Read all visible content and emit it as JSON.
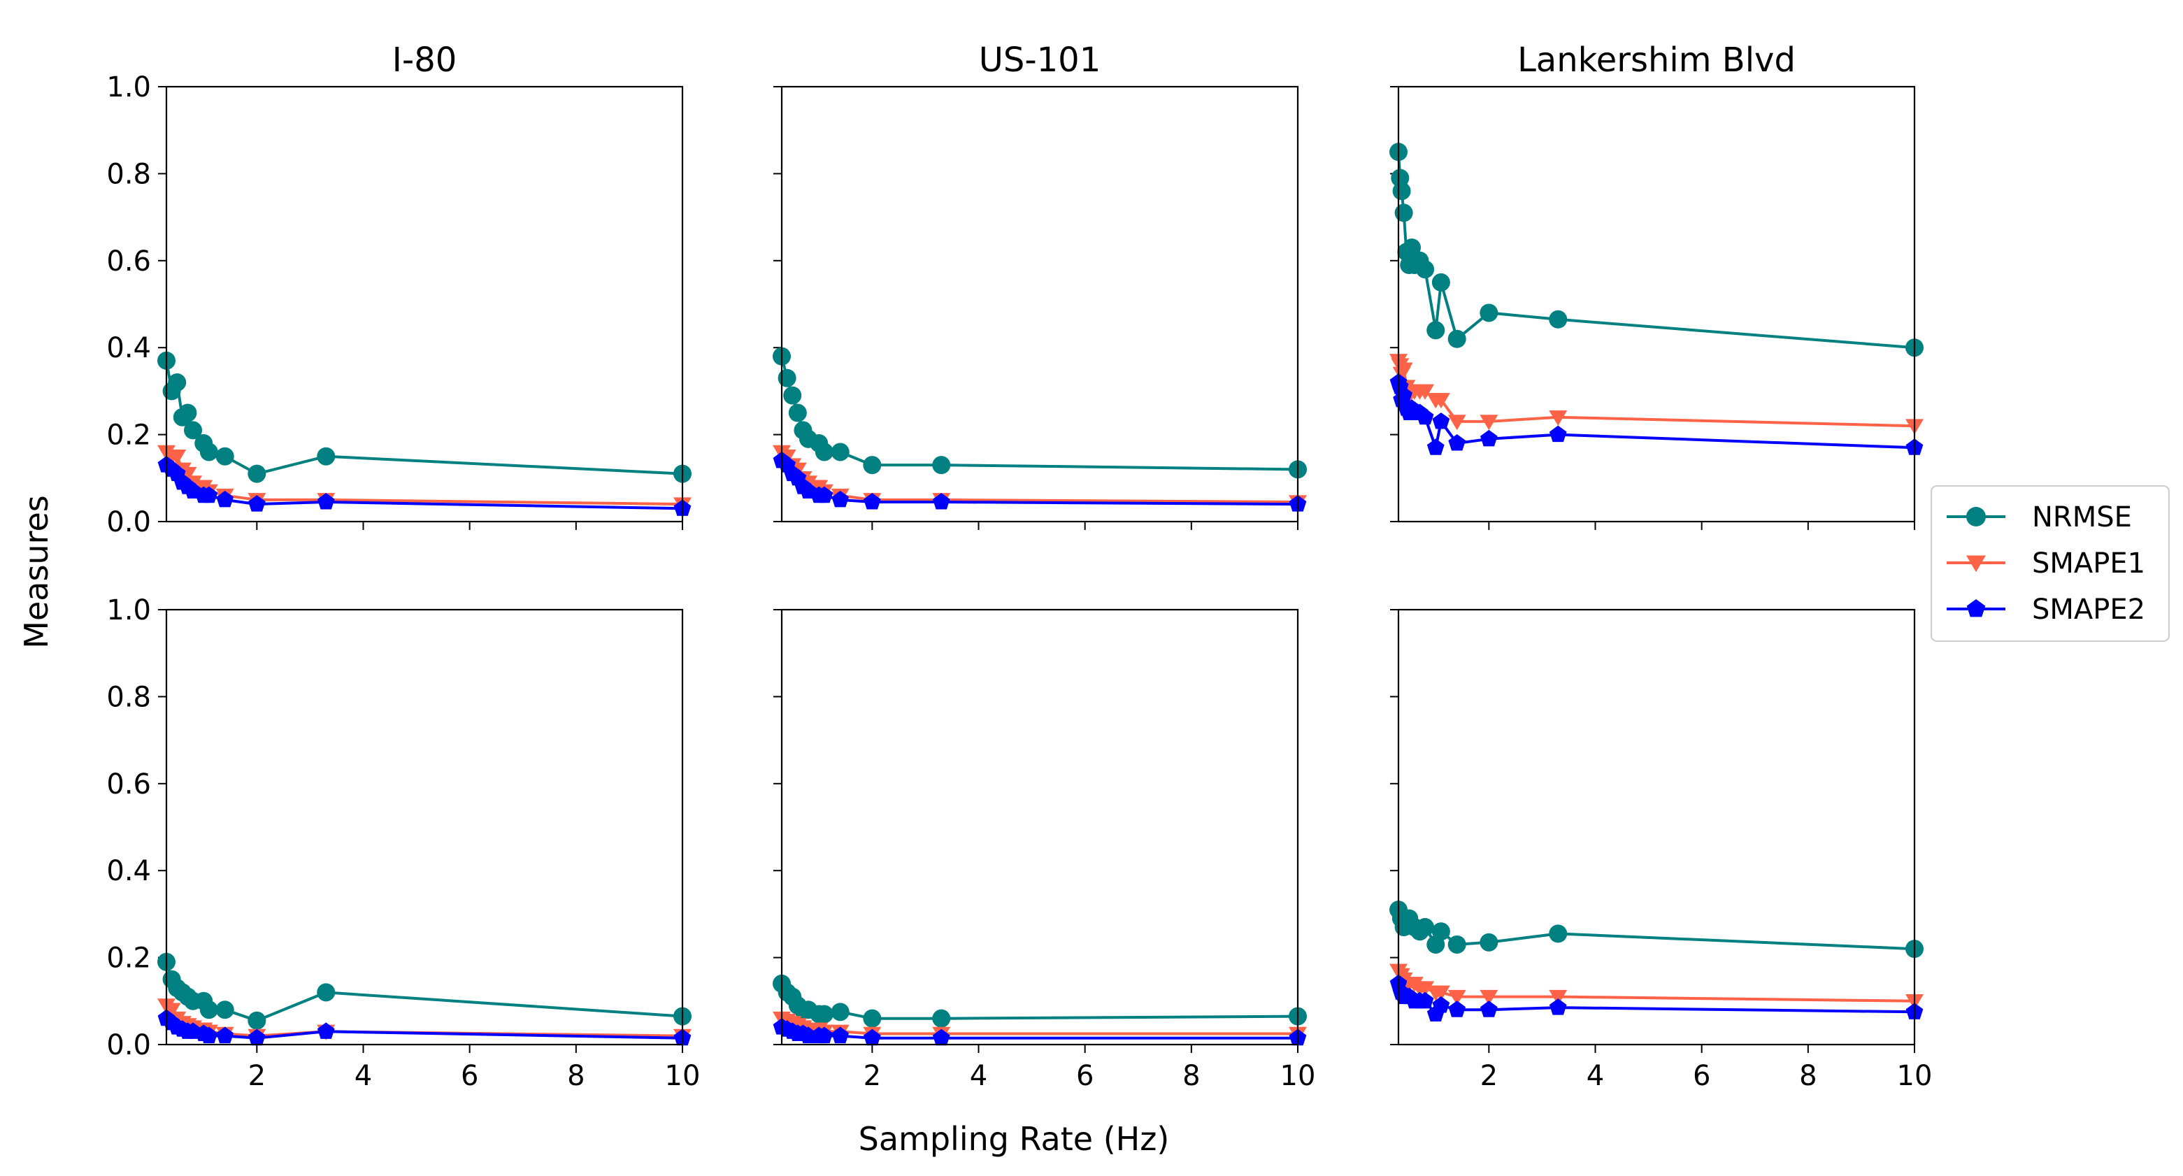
{
  "figure": {
    "ylabel": "Measures",
    "xlabel": "Sampling Rate (Hz)"
  },
  "chart_data": {
    "type": "line",
    "layout": "2 rows x 3 columns, shared x and y axes",
    "columns": [
      "I-80",
      "US-101",
      "Lankershim Blvd"
    ],
    "xlim": [
      0.3,
      10
    ],
    "ylim": [
      0.0,
      1.0
    ],
    "xticks": [
      2,
      4,
      6,
      8,
      10
    ],
    "xtick_labels": [
      "2",
      "4",
      "6",
      "8",
      "10"
    ],
    "yticks": [
      0.0,
      0.2,
      0.4,
      0.6,
      0.8,
      1.0
    ],
    "ytick_labels": [
      "0.0",
      "0.2",
      "0.4",
      "0.6",
      "0.8",
      "1.0"
    ],
    "xlabel": "Sampling Rate (Hz)",
    "ylabel": "Measures",
    "legend": {
      "placement": "right-center",
      "entries": [
        "NRMSE",
        "SMAPE1",
        "SMAPE2"
      ]
    },
    "series_styles": [
      {
        "name": "NRMSE",
        "color": "#008080",
        "marker": "circle"
      },
      {
        "name": "SMAPE1",
        "color": "#FF6347",
        "marker": "triangle-down"
      },
      {
        "name": "SMAPE2",
        "color": "#0000FF",
        "marker": "pentagon"
      }
    ],
    "panels": [
      {
        "title": "I-80",
        "row": 0,
        "col": 0,
        "series": [
          {
            "name": "NRMSE",
            "x": [
              0.3,
              0.4,
              0.5,
              0.6,
              0.7,
              0.8,
              1.0,
              1.1,
              1.4,
              2.0,
              3.3,
              10.0
            ],
            "y": [
              0.37,
              0.3,
              0.32,
              0.24,
              0.25,
              0.21,
              0.18,
              0.16,
              0.15,
              0.11,
              0.15,
              0.11
            ]
          },
          {
            "name": "SMAPE1",
            "x": [
              0.3,
              0.4,
              0.5,
              0.6,
              0.7,
              0.8,
              1.0,
              1.1,
              1.4,
              2.0,
              3.3,
              10.0
            ],
            "y": [
              0.16,
              0.15,
              0.15,
              0.12,
              0.11,
              0.09,
              0.08,
              0.07,
              0.06,
              0.05,
              0.05,
              0.04
            ]
          },
          {
            "name": "SMAPE2",
            "x": [
              0.3,
              0.4,
              0.5,
              0.6,
              0.7,
              0.8,
              1.0,
              1.1,
              1.4,
              2.0,
              3.3,
              10.0
            ],
            "y": [
              0.13,
              0.12,
              0.11,
              0.09,
              0.08,
              0.07,
              0.06,
              0.06,
              0.05,
              0.04,
              0.045,
              0.03
            ]
          }
        ]
      },
      {
        "title": "US-101",
        "row": 0,
        "col": 1,
        "series": [
          {
            "name": "NRMSE",
            "x": [
              0.3,
              0.4,
              0.5,
              0.6,
              0.7,
              0.8,
              1.0,
              1.1,
              1.4,
              2.0,
              3.3,
              10.0
            ],
            "y": [
              0.38,
              0.33,
              0.29,
              0.25,
              0.21,
              0.19,
              0.18,
              0.16,
              0.16,
              0.13,
              0.13,
              0.12
            ]
          },
          {
            "name": "SMAPE1",
            "x": [
              0.3,
              0.4,
              0.5,
              0.6,
              0.7,
              0.8,
              1.0,
              1.1,
              1.4,
              2.0,
              3.3,
              10.0
            ],
            "y": [
              0.16,
              0.15,
              0.13,
              0.12,
              0.1,
              0.09,
              0.08,
              0.07,
              0.06,
              0.05,
              0.05,
              0.045
            ]
          },
          {
            "name": "SMAPE2",
            "x": [
              0.3,
              0.4,
              0.5,
              0.6,
              0.7,
              0.8,
              1.0,
              1.1,
              1.4,
              2.0,
              3.3,
              10.0
            ],
            "y": [
              0.14,
              0.13,
              0.11,
              0.1,
              0.08,
              0.07,
              0.06,
              0.06,
              0.05,
              0.045,
              0.045,
              0.04
            ]
          }
        ]
      },
      {
        "title": "Lankershim Blvd",
        "row": 0,
        "col": 2,
        "series": [
          {
            "name": "NRMSE",
            "x": [
              0.3,
              0.33,
              0.36,
              0.4,
              0.45,
              0.5,
              0.55,
              0.6,
              0.7,
              0.8,
              1.0,
              1.1,
              1.4,
              2.0,
              3.3,
              10.0
            ],
            "y": [
              0.85,
              0.79,
              0.76,
              0.71,
              0.62,
              0.59,
              0.63,
              0.59,
              0.6,
              0.58,
              0.44,
              0.55,
              0.42,
              0.48,
              0.465,
              0.4
            ]
          },
          {
            "name": "SMAPE1",
            "x": [
              0.3,
              0.33,
              0.36,
              0.4,
              0.45,
              0.5,
              0.55,
              0.6,
              0.7,
              0.8,
              1.0,
              1.1,
              1.4,
              2.0,
              3.3,
              10.0
            ],
            "y": [
              0.37,
              0.36,
              0.34,
              0.35,
              0.31,
              0.29,
              0.3,
              0.3,
              0.3,
              0.3,
              0.28,
              0.28,
              0.23,
              0.23,
              0.24,
              0.22
            ]
          },
          {
            "name": "SMAPE2",
            "x": [
              0.3,
              0.33,
              0.36,
              0.4,
              0.45,
              0.5,
              0.55,
              0.6,
              0.7,
              0.8,
              1.0,
              1.1,
              1.4,
              2.0,
              3.3,
              10.0
            ],
            "y": [
              0.32,
              0.31,
              0.28,
              0.29,
              0.26,
              0.25,
              0.26,
              0.25,
              0.25,
              0.24,
              0.17,
              0.23,
              0.18,
              0.19,
              0.2,
              0.17
            ]
          }
        ]
      },
      {
        "title": "I-80",
        "row": 1,
        "col": 0,
        "series": [
          {
            "name": "NRMSE",
            "x": [
              0.3,
              0.4,
              0.5,
              0.6,
              0.7,
              0.8,
              1.0,
              1.1,
              1.4,
              2.0,
              3.3,
              10.0
            ],
            "y": [
              0.19,
              0.15,
              0.13,
              0.12,
              0.11,
              0.1,
              0.1,
              0.08,
              0.08,
              0.055,
              0.12,
              0.065
            ]
          },
          {
            "name": "SMAPE1",
            "x": [
              0.3,
              0.4,
              0.5,
              0.6,
              0.7,
              0.8,
              1.0,
              1.1,
              1.4,
              2.0,
              3.3,
              10.0
            ],
            "y": [
              0.09,
              0.08,
              0.06,
              0.05,
              0.045,
              0.04,
              0.035,
              0.03,
              0.025,
              0.02,
              0.03,
              0.02
            ]
          },
          {
            "name": "SMAPE2",
            "x": [
              0.3,
              0.4,
              0.5,
              0.6,
              0.7,
              0.8,
              1.0,
              1.1,
              1.4,
              2.0,
              3.3,
              10.0
            ],
            "y": [
              0.06,
              0.05,
              0.04,
              0.035,
              0.03,
              0.03,
              0.025,
              0.02,
              0.02,
              0.015,
              0.03,
              0.015
            ]
          }
        ]
      },
      {
        "title": "US-101",
        "row": 1,
        "col": 1,
        "series": [
          {
            "name": "NRMSE",
            "x": [
              0.3,
              0.4,
              0.5,
              0.6,
              0.7,
              0.8,
              1.0,
              1.1,
              1.4,
              2.0,
              3.3,
              10.0
            ],
            "y": [
              0.14,
              0.12,
              0.11,
              0.09,
              0.08,
              0.08,
              0.07,
              0.07,
              0.075,
              0.06,
              0.06,
              0.065
            ]
          },
          {
            "name": "SMAPE1",
            "x": [
              0.3,
              0.4,
              0.5,
              0.6,
              0.7,
              0.8,
              1.0,
              1.1,
              1.4,
              2.0,
              3.3,
              10.0
            ],
            "y": [
              0.06,
              0.055,
              0.05,
              0.045,
              0.04,
              0.035,
              0.035,
              0.03,
              0.03,
              0.025,
              0.025,
              0.025
            ]
          },
          {
            "name": "SMAPE2",
            "x": [
              0.3,
              0.4,
              0.5,
              0.6,
              0.7,
              0.8,
              1.0,
              1.1,
              1.4,
              2.0,
              3.3,
              10.0
            ],
            "y": [
              0.04,
              0.035,
              0.03,
              0.025,
              0.025,
              0.02,
              0.02,
              0.02,
              0.02,
              0.015,
              0.015,
              0.015
            ]
          }
        ]
      },
      {
        "title": "Lankershim Blvd",
        "row": 1,
        "col": 2,
        "series": [
          {
            "name": "NRMSE",
            "x": [
              0.3,
              0.35,
              0.4,
              0.5,
              0.6,
              0.7,
              0.8,
              1.0,
              1.1,
              1.4,
              2.0,
              3.3,
              10.0
            ],
            "y": [
              0.31,
              0.29,
              0.27,
              0.29,
              0.27,
              0.26,
              0.27,
              0.23,
              0.26,
              0.23,
              0.235,
              0.255,
              0.22
            ]
          },
          {
            "name": "SMAPE1",
            "x": [
              0.3,
              0.35,
              0.4,
              0.5,
              0.6,
              0.7,
              0.8,
              1.0,
              1.1,
              1.4,
              2.0,
              3.3,
              10.0
            ],
            "y": [
              0.17,
              0.16,
              0.15,
              0.14,
              0.14,
              0.13,
              0.13,
              0.12,
              0.12,
              0.11,
              0.11,
              0.11,
              0.1
            ]
          },
          {
            "name": "SMAPE2",
            "x": [
              0.3,
              0.35,
              0.4,
              0.5,
              0.6,
              0.7,
              0.8,
              1.0,
              1.1,
              1.4,
              2.0,
              3.3,
              10.0
            ],
            "y": [
              0.14,
              0.12,
              0.11,
              0.11,
              0.1,
              0.1,
              0.1,
              0.07,
              0.09,
              0.08,
              0.08,
              0.085,
              0.075
            ]
          }
        ]
      }
    ]
  }
}
